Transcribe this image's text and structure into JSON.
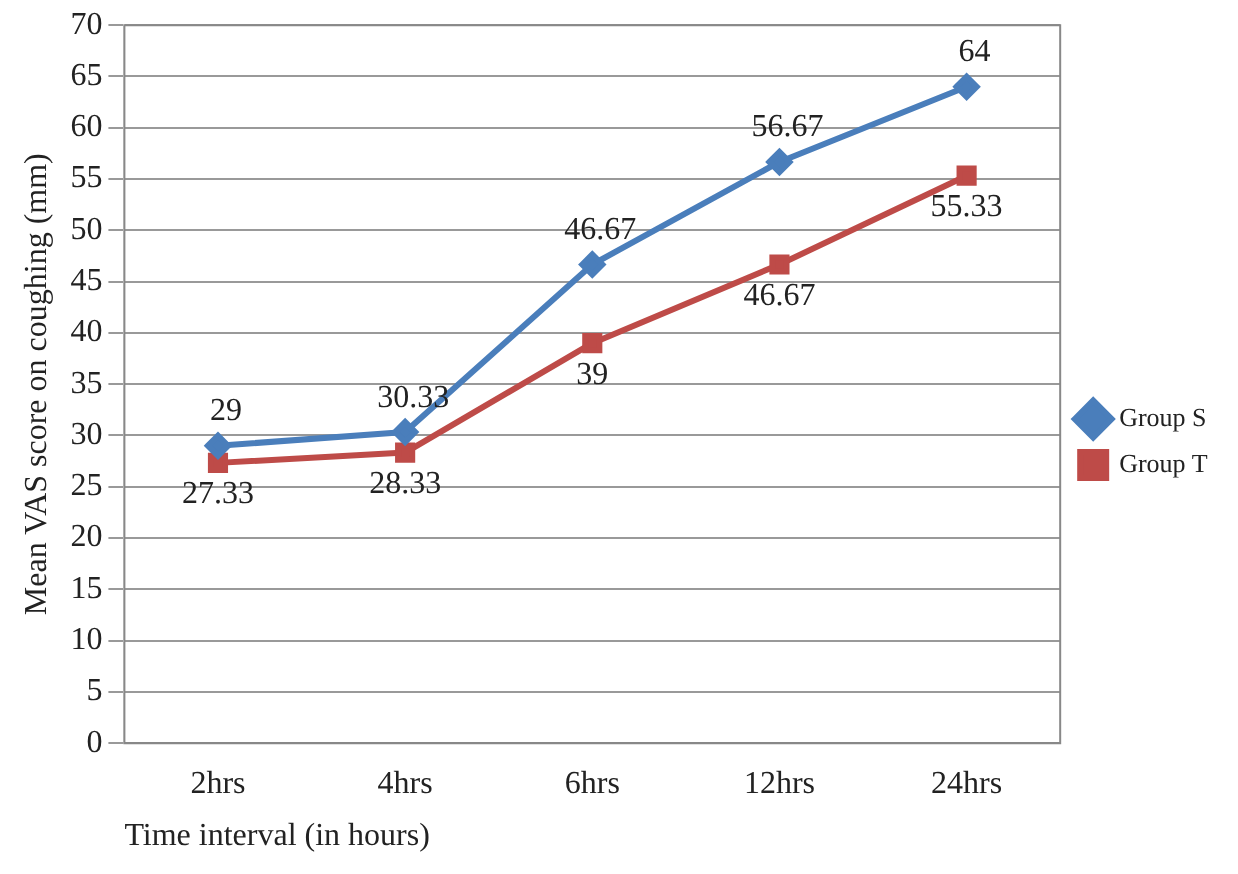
{
  "chart_data": {
    "type": "line",
    "ylabel": "Mean VAS score on coughing (mm)",
    "xlabel": "Time interval (in hours)",
    "categories": [
      "2hrs",
      "4hrs",
      "6hrs",
      "12hrs",
      "24hrs"
    ],
    "series": [
      {
        "name": "Group S",
        "color": "#4a7ebb",
        "marker": "diamond",
        "values": [
          29,
          30.33,
          46.67,
          56.67,
          64
        ]
      },
      {
        "name": "Group T",
        "color": "#be4b48",
        "marker": "square",
        "values": [
          27.33,
          28.33,
          39,
          46.67,
          55.33
        ]
      }
    ],
    "ylim": [
      0,
      70
    ],
    "yticks": [
      0,
      5,
      10,
      15,
      20,
      25,
      30,
      35,
      40,
      45,
      50,
      55,
      60,
      65,
      70
    ],
    "grid": "y",
    "legend": "right",
    "data_labels": true
  }
}
